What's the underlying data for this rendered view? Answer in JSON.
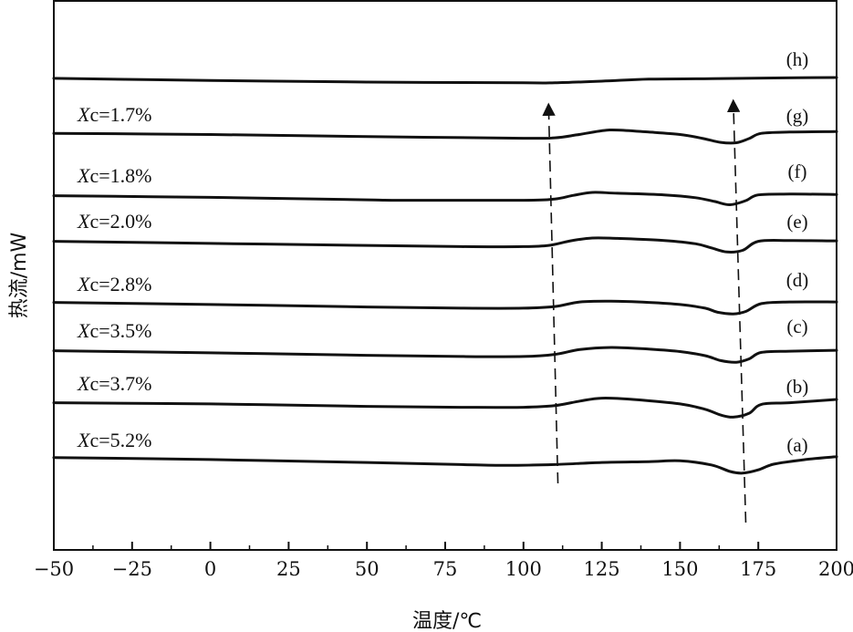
{
  "chart_data": {
    "type": "line",
    "xlabel": "温度/℃",
    "ylabel": "热流/mW",
    "xlim": [
      -50,
      200
    ],
    "xticks": [
      "−50",
      "−25",
      "0",
      "25",
      "50",
      "75",
      "100",
      "125",
      "150",
      "175",
      "200"
    ],
    "yticks": "none",
    "grid": false,
    "series": [
      {
        "tag": "(a)",
        "crystallinity": "Xc=5.2%",
        "points": [
          [
            -50,
            0.3
          ],
          [
            0,
            0.55
          ],
          [
            50,
            0.9
          ],
          [
            80,
            1.15
          ],
          [
            95,
            1.25
          ],
          [
            110,
            1.15
          ],
          [
            125,
            0.9
          ],
          [
            140,
            0.8
          ],
          [
            150,
            0.7
          ],
          [
            160,
            1.2
          ],
          [
            166,
            2.0
          ],
          [
            170,
            2.2
          ],
          [
            175,
            1.8
          ],
          [
            180,
            1.1
          ],
          [
            190,
            0.55
          ],
          [
            200,
            0.2
          ]
        ]
      },
      {
        "tag": "(b)",
        "crystallinity": "Xc=3.7%",
        "points": [
          [
            -50,
            0.4
          ],
          [
            0,
            0.55
          ],
          [
            50,
            0.85
          ],
          [
            80,
            0.95
          ],
          [
            100,
            0.95
          ],
          [
            110,
            0.75
          ],
          [
            118,
            0.2
          ],
          [
            125,
            -0.15
          ],
          [
            135,
            0.0
          ],
          [
            150,
            0.55
          ],
          [
            158,
            1.2
          ],
          [
            163,
            1.9
          ],
          [
            167,
            2.15
          ],
          [
            172,
            1.7
          ],
          [
            176,
            0.6
          ],
          [
            185,
            0.4
          ],
          [
            200,
            0.0
          ]
        ]
      },
      {
        "tag": "(c)",
        "crystallinity": "Xc=3.5%",
        "points": [
          [
            -50,
            0.4
          ],
          [
            0,
            0.65
          ],
          [
            50,
            0.95
          ],
          [
            80,
            1.1
          ],
          [
            100,
            1.1
          ],
          [
            110,
            0.85
          ],
          [
            118,
            0.25
          ],
          [
            128,
            0.0
          ],
          [
            140,
            0.2
          ],
          [
            150,
            0.5
          ],
          [
            158,
            1.0
          ],
          [
            163,
            1.6
          ],
          [
            168,
            1.8
          ],
          [
            172,
            1.4
          ],
          [
            176,
            0.6
          ],
          [
            185,
            0.45
          ],
          [
            200,
            0.35
          ]
        ]
      },
      {
        "tag": "(d)",
        "crystallinity": "Xc=2.8%",
        "points": [
          [
            -50,
            0.4
          ],
          [
            0,
            0.65
          ],
          [
            50,
            0.95
          ],
          [
            80,
            1.1
          ],
          [
            100,
            1.1
          ],
          [
            110,
            0.9
          ],
          [
            118,
            0.35
          ],
          [
            128,
            0.25
          ],
          [
            140,
            0.4
          ],
          [
            150,
            0.65
          ],
          [
            158,
            1.1
          ],
          [
            162,
            1.6
          ],
          [
            167,
            1.8
          ],
          [
            171,
            1.5
          ],
          [
            176,
            0.55
          ],
          [
            185,
            0.35
          ],
          [
            200,
            0.35
          ]
        ]
      },
      {
        "tag": "(e)",
        "crystallinity": "Xc=2.0%",
        "points": [
          [
            -50,
            0.4
          ],
          [
            0,
            0.65
          ],
          [
            50,
            0.9
          ],
          [
            80,
            1.05
          ],
          [
            100,
            1.05
          ],
          [
            108,
            0.9
          ],
          [
            115,
            0.35
          ],
          [
            122,
            0.0
          ],
          [
            130,
            0.05
          ],
          [
            145,
            0.3
          ],
          [
            155,
            0.7
          ],
          [
            160,
            1.2
          ],
          [
            165,
            1.7
          ],
          [
            170,
            1.5
          ],
          [
            175,
            0.4
          ],
          [
            185,
            0.3
          ],
          [
            200,
            0.35
          ]
        ]
      },
      {
        "tag": "(f)",
        "crystallinity": "Xc=1.8%",
        "points": [
          [
            -50,
            0.4
          ],
          [
            0,
            0.6
          ],
          [
            50,
            0.9
          ],
          [
            60,
            0.95
          ],
          [
            100,
            0.95
          ],
          [
            110,
            0.8
          ],
          [
            116,
            0.35
          ],
          [
            122,
            0.0
          ],
          [
            130,
            0.1
          ],
          [
            145,
            0.3
          ],
          [
            155,
            0.65
          ],
          [
            161,
            1.1
          ],
          [
            166,
            1.5
          ],
          [
            171,
            1.0
          ],
          [
            175,
            0.3
          ],
          [
            185,
            0.2
          ],
          [
            200,
            0.25
          ]
        ]
      },
      {
        "tag": "(g)",
        "crystallinity": "Xc=1.7%",
        "points": [
          [
            -50,
            0.35
          ],
          [
            0,
            0.5
          ],
          [
            50,
            0.75
          ],
          [
            100,
            0.95
          ],
          [
            110,
            0.9
          ],
          [
            117,
            0.55
          ],
          [
            125,
            0.05
          ],
          [
            130,
            -0.05
          ],
          [
            140,
            0.2
          ],
          [
            150,
            0.5
          ],
          [
            157,
            0.95
          ],
          [
            163,
            1.45
          ],
          [
            168,
            1.5
          ],
          [
            172,
            1.0
          ],
          [
            176,
            0.35
          ],
          [
            185,
            0.2
          ],
          [
            200,
            0.15
          ]
        ]
      },
      {
        "tag": "(h)",
        "crystallinity": "",
        "points": [
          [
            -50,
            0.1
          ],
          [
            0,
            0.35
          ],
          [
            50,
            0.55
          ],
          [
            100,
            0.65
          ],
          [
            110,
            0.65
          ],
          [
            125,
            0.45
          ],
          [
            140,
            0.2
          ],
          [
            160,
            0.15
          ],
          [
            180,
            0.05
          ],
          [
            200,
            0.0
          ]
        ]
      }
    ],
    "annotations": "two dashed arrows pointing upward",
    "arrows": [
      {
        "from": [
          111,
          0.25
        ],
        "to": [
          108,
          7.85
        ]
      },
      {
        "from": [
          171,
          -0.5
        ],
        "to": [
          167,
          8.15
        ]
      }
    ]
  }
}
